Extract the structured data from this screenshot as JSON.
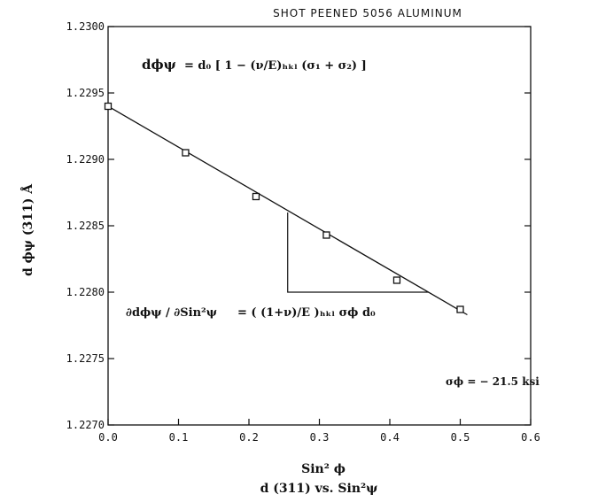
{
  "chart_data": {
    "type": "scatter",
    "title": "SHOT PEENED 5056 ALUMINUM",
    "xlabel": "Sin² ϕ",
    "caption": "d (311) vs. Sin²ψ",
    "ylabel": "d ϕψ (311) Å",
    "xlim": [
      0.0,
      0.6
    ],
    "ylim": [
      1.227,
      1.23
    ],
    "x_ticks": [
      "0.0",
      "0.1",
      "0.2",
      "0.3",
      "0.4",
      "0.5",
      "0.6"
    ],
    "y_ticks": [
      "1.2270",
      "1.2275",
      "1.2280",
      "1.2285",
      "1.2290",
      "1.2295",
      "1.2300"
    ],
    "grid": false,
    "series": [
      {
        "points": [
          {
            "x": 0.0,
            "y": 1.2294
          },
          {
            "x": 0.11,
            "y": 1.22905
          },
          {
            "x": 0.21,
            "y": 1.22872
          },
          {
            "x": 0.31,
            "y": 1.22843
          },
          {
            "x": 0.41,
            "y": 1.22809
          },
          {
            "x": 0.5,
            "y": 1.22787
          }
        ]
      }
    ],
    "fit_line": {
      "x": [
        0.0,
        0.51
      ],
      "y": [
        1.2294,
        1.22783
      ]
    },
    "slope_triangle": {
      "x1": 0.255,
      "x2": 0.455,
      "y_top": 1.2286,
      "y_bottom": 1.228
    },
    "annotations": {
      "eq1_lhs": "dϕψ",
      "eq1_rhs": "= d₀ [ 1 − (ν/E)ₕₖₗ (σ₁ + σ₂) ]",
      "eq2_lhs": "∂dϕψ / ∂Sin²ψ",
      "eq2_rhs": "= ( (1+ν)/E )ₕₖₗ σϕ d₀",
      "stress": "σϕ = − 21.5 ksi"
    }
  }
}
